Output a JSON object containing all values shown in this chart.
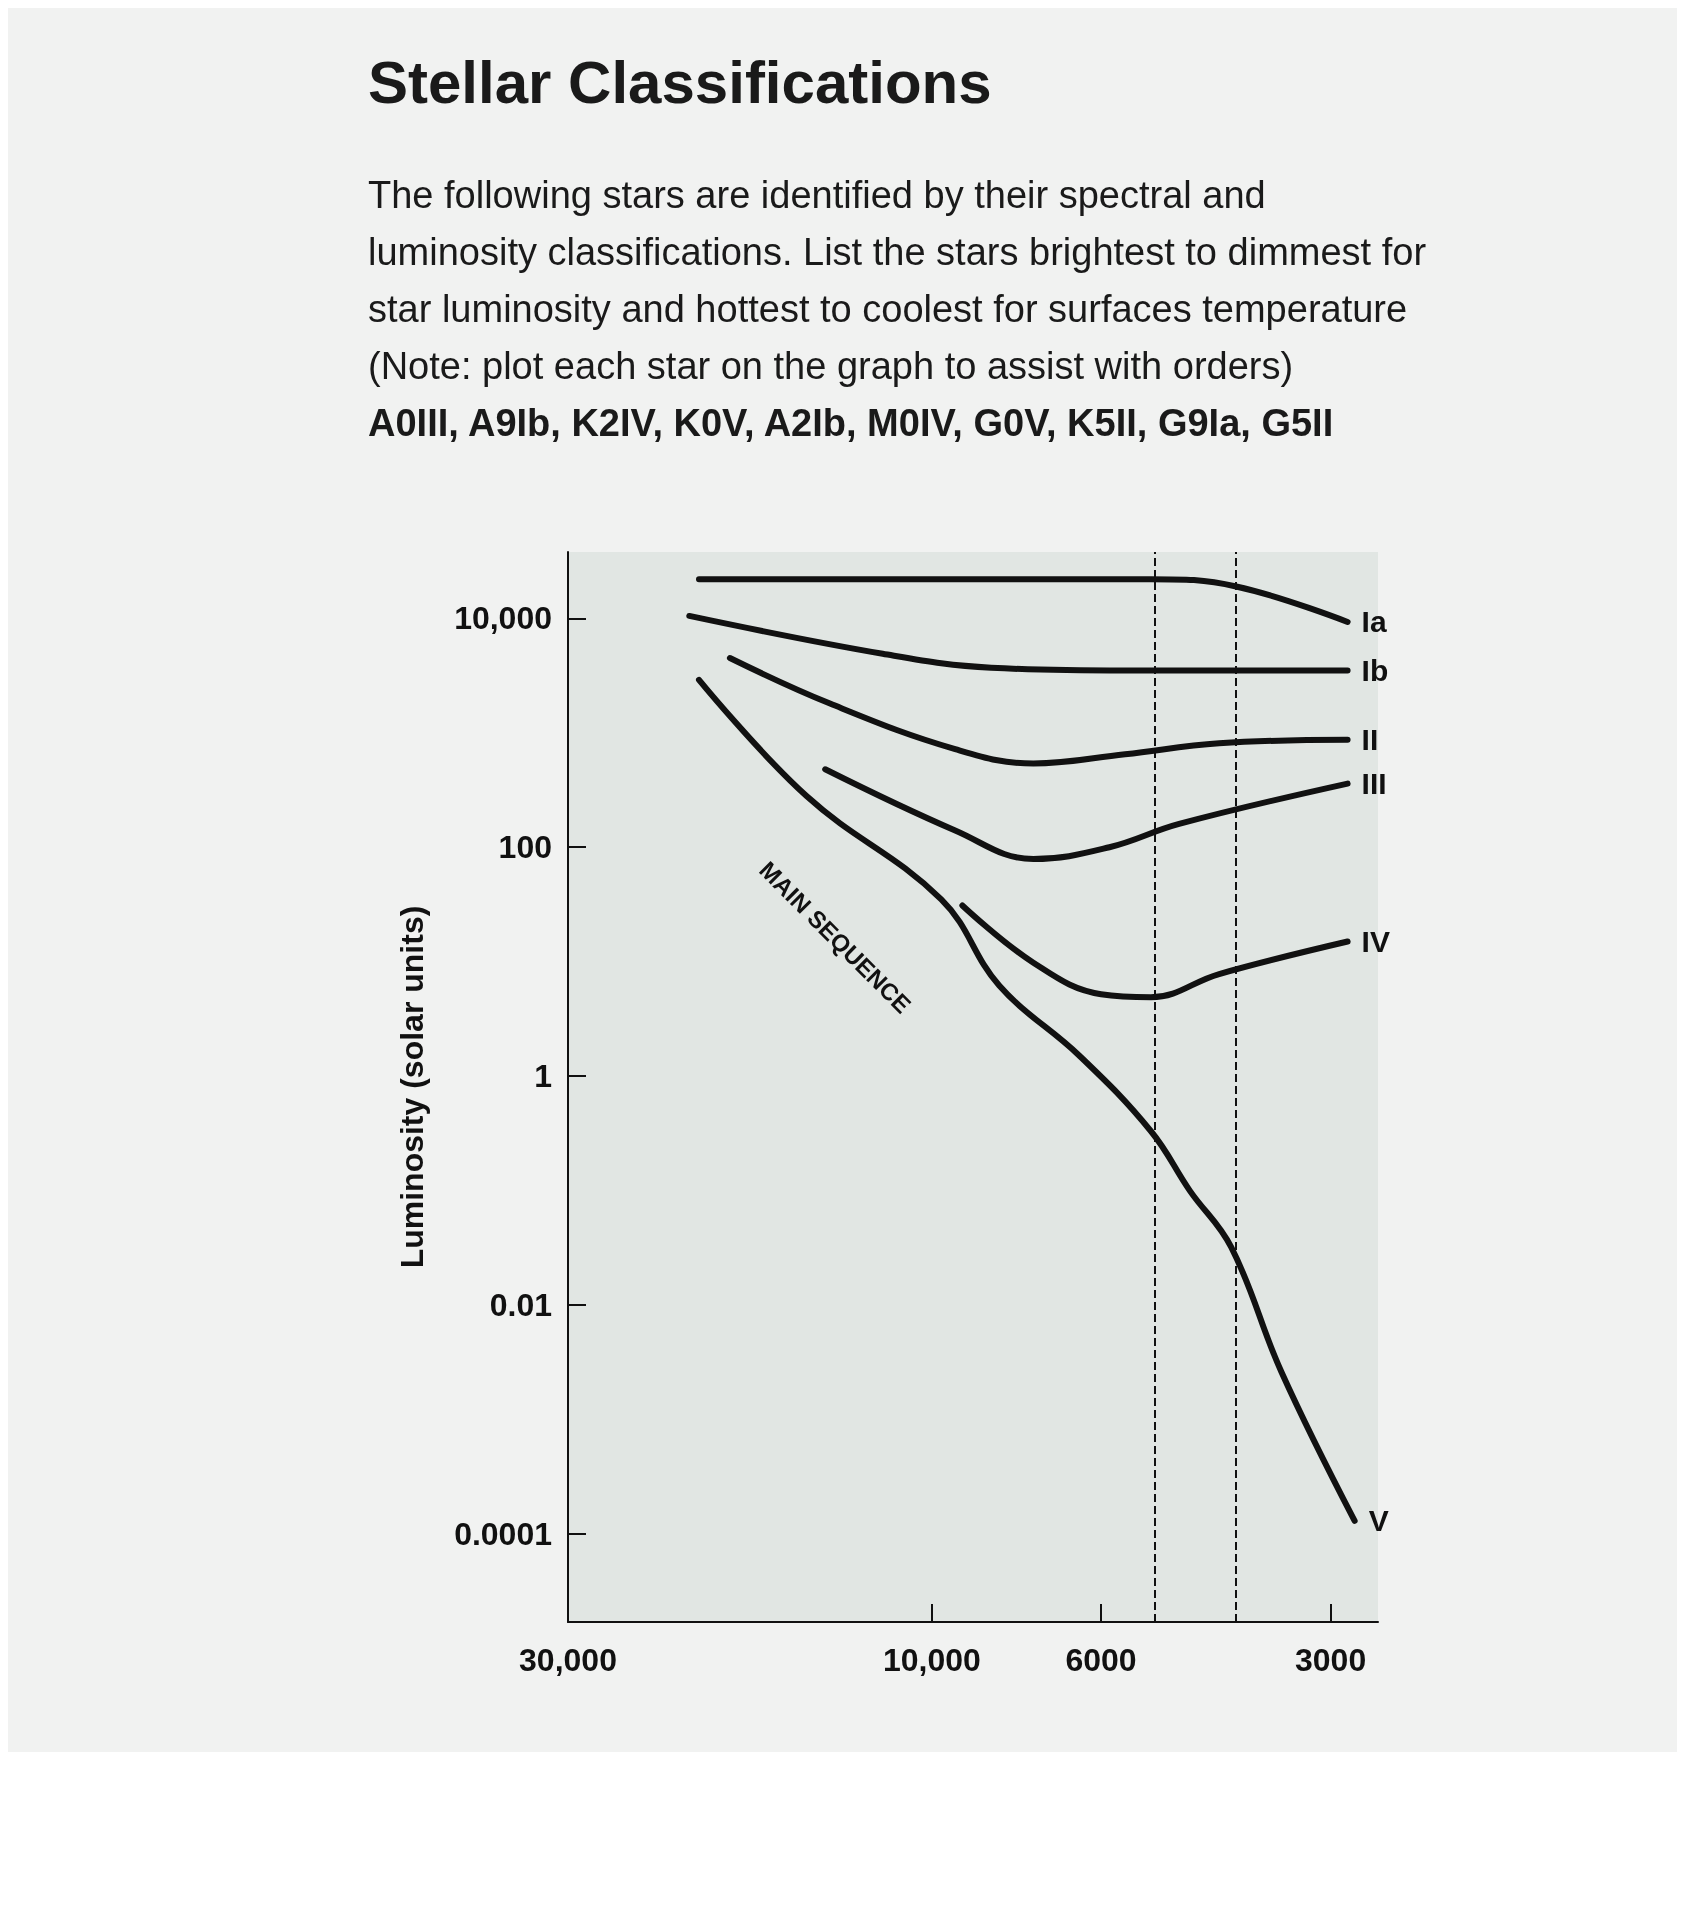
{
  "chart_data": {
    "type": "line",
    "title": "Stellar Classifications",
    "subtitle": "The following stars are identified by their spectral and luminosity classifications. List the stars brightest to dimmest for star luminosity and hottest to coolest for surfaces temperature (Note: plot each star on the graph to assist with orders)",
    "annotations": [
      "A0III, A9Ib, K2IV, K0V, A2Ib, M0IV, G0V, K5II, G9Ia, G5II",
      "MAIN SEQUENCE"
    ],
    "ylabel": "Luminosity (solar units)",
    "log": "xy",
    "grid": false,
    "legend": false,
    "marker": "none",
    "line_style": "solid",
    "xlim": [
      30000,
      2600
    ],
    "xticks": [
      {
        "value": 30000,
        "label": "30,000"
      },
      {
        "value": 10000,
        "label": "10,000"
      },
      6000,
      3000
    ],
    "ylim": [
      1.7e-05,
      38000
    ],
    "yticks": [
      0.0001,
      0.01,
      1,
      100,
      {
        "value": 10000,
        "label": "10,000"
      }
    ],
    "ref_lines": [
      {
        "axis": "x",
        "value": 5100,
        "color": "#111111",
        "line_style": "dashed"
      },
      {
        "axis": "x",
        "value": 3990,
        "color": "#111111",
        "line_style": "dashed"
      }
    ],
    "series": [
      {
        "name": "Ia",
        "color": "#111111",
        "x": [
          20200,
          5160,
          3990,
          2850
        ],
        "values": [
          22000,
          22000,
          19000,
          9300
        ]
      },
      {
        "name": "Ib",
        "color": "#111111",
        "x": [
          20800,
          11600,
          8360,
          5580,
          2850
        ],
        "values": [
          10500,
          4900,
          3700,
          3500,
          3500
        ]
      },
      {
        "name": "II",
        "color": "#111111",
        "x": [
          18400,
          13600,
          9320,
          7360,
          5580,
          4200,
          2850
        ],
        "values": [
          4500,
          1800,
          720,
          540,
          650,
          810,
          870
        ]
      },
      {
        "name": "III",
        "color": "#111111",
        "x": [
          13800,
          9320,
          7360,
          5850,
          4740,
          2850
        ],
        "values": [
          480,
          140,
          79,
          100,
          160,
          360
        ]
      },
      {
        "name": "IV",
        "color": "#111111",
        "x": [
          9120,
          7360,
          6000,
          5160,
          4200,
          2850
        ],
        "values": [
          31,
          9.8,
          5.2,
          4.9,
          7.8,
          15
        ]
      },
      {
        "name": "V",
        "color": "#111111",
        "x": [
          20200,
          14600,
          9720,
          8160,
          6400,
          5160,
          4590,
          4050,
          3480,
          2790
        ],
        "values": [
          2900,
          280,
          35,
          6.2,
          1.5,
          0.33,
          0.1,
          0.032,
          0.0026,
          0.00013
        ]
      }
    ]
  }
}
